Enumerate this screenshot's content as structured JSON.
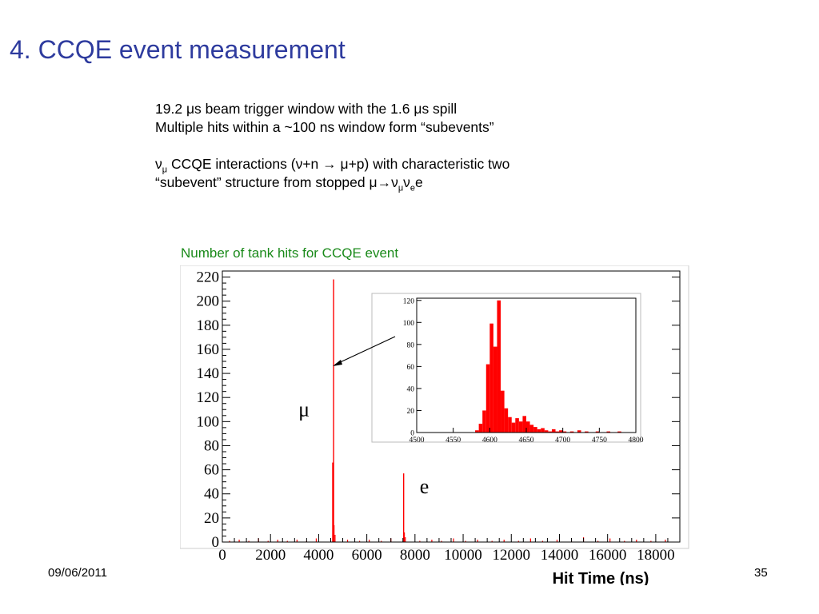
{
  "slide": {
    "title": "4. CCQE event measurement",
    "bullets": {
      "line1_a": "19.2 ",
      "line1_mu": "μ",
      "line1_b": "s beam trigger window with the 1.6 ",
      "line1_mu2": "μ",
      "line1_c": "s spill",
      "line2": "Multiple hits within a ~100 ns window form “subevents”",
      "line3_nu": "ν",
      "line3_sub": "μ",
      "line3_a": " CCQE interactions (",
      "line3_b": "ν+n ",
      "line3_arrow": "→",
      "line3_c": " μ+p) with characteristic  two",
      "line4_a": "“subevent” structure from stopped ",
      "line4_decay": "μ→ν",
      "line4_sub1": "μ",
      "line4_nu": "ν",
      "line4_sub2": "e",
      "line4_e": "e"
    },
    "chart_caption": "Number of tank hits for CCQE event",
    "footer_date": "09/06/2011",
    "page_number": "35"
  },
  "chart_data": [
    {
      "type": "bar",
      "title": "",
      "xlabel": "Hit Time (ns)",
      "ylabel": "",
      "xlim": [
        0,
        19000
      ],
      "ylim": [
        0,
        225
      ],
      "x_ticks": [
        0,
        2000,
        4000,
        6000,
        8000,
        10000,
        12000,
        14000,
        16000,
        18000
      ],
      "y_ticks": [
        0,
        20,
        40,
        60,
        80,
        100,
        120,
        140,
        160,
        180,
        200,
        220
      ],
      "x_tick_labels": [
        "0",
        "2000",
        "4000",
        "6000",
        "8000",
        "10000",
        "12000",
        "14000",
        "16000",
        "18000"
      ],
      "bar_color": "#ff0000",
      "peaks": [
        {
          "x": 4620,
          "y": 218,
          "label": "μ"
        },
        {
          "x": 7530,
          "y": 57,
          "label": "e"
        }
      ],
      "noise": [
        {
          "x": 4580,
          "y": 66
        },
        {
          "x": 4640,
          "y": 14
        },
        {
          "x": 4680,
          "y": 6
        },
        {
          "x": 7560,
          "y": 8
        },
        {
          "x": 7600,
          "y": 4
        },
        {
          "x": 300,
          "y": 1
        },
        {
          "x": 700,
          "y": 2
        },
        {
          "x": 1100,
          "y": 1
        },
        {
          "x": 1500,
          "y": 3
        },
        {
          "x": 1900,
          "y": 1
        },
        {
          "x": 2300,
          "y": 2
        },
        {
          "x": 2700,
          "y": 1
        },
        {
          "x": 3100,
          "y": 2
        },
        {
          "x": 3500,
          "y": 1
        },
        {
          "x": 3900,
          "y": 3
        },
        {
          "x": 5200,
          "y": 2
        },
        {
          "x": 5700,
          "y": 1
        },
        {
          "x": 6100,
          "y": 2
        },
        {
          "x": 6600,
          "y": 1
        },
        {
          "x": 7000,
          "y": 3
        },
        {
          "x": 8200,
          "y": 1
        },
        {
          "x": 8700,
          "y": 2
        },
        {
          "x": 9100,
          "y": 1
        },
        {
          "x": 9600,
          "y": 3
        },
        {
          "x": 10100,
          "y": 1
        },
        {
          "x": 10600,
          "y": 2
        },
        {
          "x": 11200,
          "y": 1
        },
        {
          "x": 11700,
          "y": 2
        },
        {
          "x": 12300,
          "y": 1
        },
        {
          "x": 12800,
          "y": 3
        },
        {
          "x": 13300,
          "y": 1
        },
        {
          "x": 13900,
          "y": 2
        },
        {
          "x": 14500,
          "y": 1
        },
        {
          "x": 15000,
          "y": 4
        },
        {
          "x": 15600,
          "y": 1
        },
        {
          "x": 16100,
          "y": 3
        },
        {
          "x": 16700,
          "y": 1
        },
        {
          "x": 17200,
          "y": 2
        },
        {
          "x": 17800,
          "y": 1
        },
        {
          "x": 18400,
          "y": 2
        }
      ]
    },
    {
      "type": "bar",
      "title": "",
      "xlabel": "",
      "ylabel": "",
      "xlim": [
        4500,
        4800
      ],
      "ylim": [
        0,
        122
      ],
      "x_ticks": [
        4500,
        4550,
        4600,
        4650,
        4700,
        4750,
        4800
      ],
      "y_ticks": [
        0,
        20,
        40,
        60,
        80,
        100,
        120
      ],
      "bar_color": "#ff0000",
      "bin_width": 5,
      "bins": [
        {
          "x": 4580,
          "y": 2
        },
        {
          "x": 4585,
          "y": 8
        },
        {
          "x": 4590,
          "y": 20
        },
        {
          "x": 4595,
          "y": 62
        },
        {
          "x": 4600,
          "y": 99
        },
        {
          "x": 4605,
          "y": 78
        },
        {
          "x": 4610,
          "y": 120
        },
        {
          "x": 4615,
          "y": 38
        },
        {
          "x": 4620,
          "y": 22
        },
        {
          "x": 4625,
          "y": 14
        },
        {
          "x": 4630,
          "y": 9
        },
        {
          "x": 4635,
          "y": 13
        },
        {
          "x": 4640,
          "y": 10
        },
        {
          "x": 4645,
          "y": 15
        },
        {
          "x": 4650,
          "y": 10
        },
        {
          "x": 4655,
          "y": 7
        },
        {
          "x": 4660,
          "y": 5
        },
        {
          "x": 4665,
          "y": 3
        },
        {
          "x": 4670,
          "y": 4
        },
        {
          "x": 4675,
          "y": 2
        },
        {
          "x": 4680,
          "y": 1
        },
        {
          "x": 4685,
          "y": 3
        },
        {
          "x": 4690,
          "y": 1
        },
        {
          "x": 4695,
          "y": 2
        },
        {
          "x": 4700,
          "y": 1
        },
        {
          "x": 4710,
          "y": 1
        },
        {
          "x": 4720,
          "y": 2
        },
        {
          "x": 4730,
          "y": 1
        },
        {
          "x": 4745,
          "y": 1
        },
        {
          "x": 4760,
          "y": 1
        },
        {
          "x": 4775,
          "y": 1
        }
      ]
    }
  ]
}
